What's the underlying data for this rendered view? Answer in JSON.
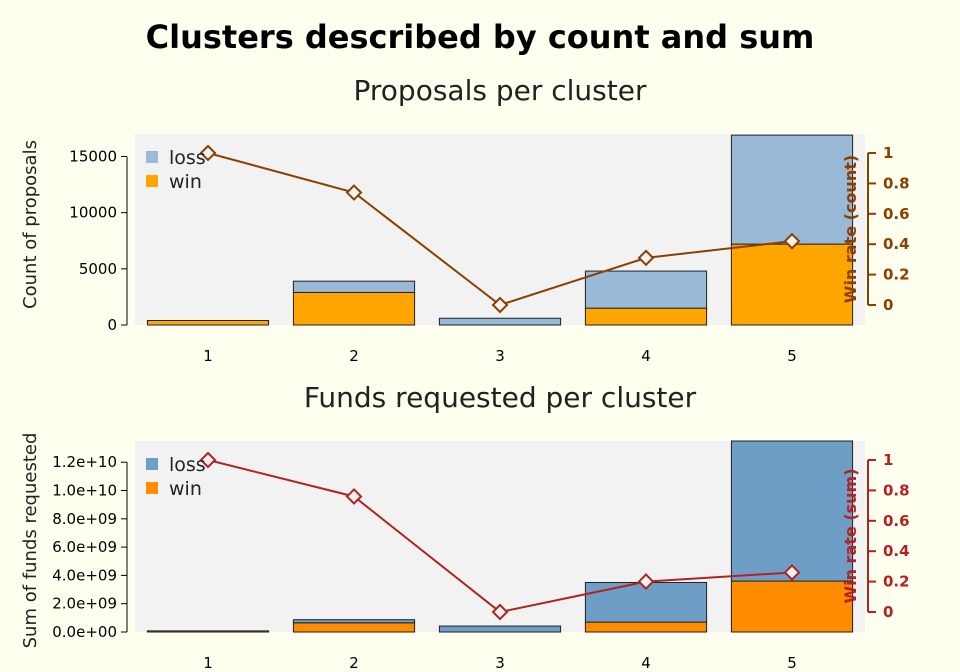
{
  "title": "Clusters described by count and sum",
  "chart_data": [
    {
      "type": "bar",
      "stacked": true,
      "title": "Proposals per cluster",
      "ylabel": "Count of proposals",
      "y2label": "Win rate (count)",
      "categories": [
        "1",
        "2",
        "3",
        "4",
        "5"
      ],
      "series": [
        {
          "name": "win",
          "values": [
            400,
            2900,
            0,
            1500,
            7200
          ],
          "color": "#ffa500"
        },
        {
          "name": "loss",
          "values": [
            0,
            1000,
            600,
            3300,
            9700
          ],
          "color": "#9ab9d6"
        }
      ],
      "win_rate": [
        1.0,
        0.74,
        0.0,
        0.31,
        0.42
      ],
      "ylim": [
        0,
        17000
      ],
      "yticks": [
        0,
        5000,
        10000,
        15000
      ],
      "y2lim": [
        0,
        1
      ],
      "y2ticks": [
        0,
        0.2,
        0.4,
        0.6,
        0.8,
        1
      ],
      "y2tick_labels": [
        "0",
        "0.2",
        "0.4",
        "0.6",
        "0.8",
        "1"
      ],
      "line_color": "#8b4000",
      "legend": [
        "loss",
        "win"
      ],
      "legend_position": "top-left",
      "grid": false
    },
    {
      "type": "bar",
      "stacked": true,
      "title": "Funds requested per cluster",
      "ylabel": "Sum of funds requested",
      "y2label": "Win rate (sum)",
      "categories": [
        "1",
        "2",
        "3",
        "4",
        "5"
      ],
      "series": [
        {
          "name": "win",
          "values": [
            80000000,
            650000000,
            0,
            700000000,
            3600000000
          ],
          "color": "#ff8c00"
        },
        {
          "name": "loss",
          "values": [
            0,
            220000000,
            420000000,
            2800000000,
            9900000000
          ],
          "color": "#6e9ec6"
        }
      ],
      "win_rate": [
        1.0,
        0.76,
        0.0,
        0.2,
        0.26
      ],
      "ylim": [
        0,
        13500000000
      ],
      "yticks": [
        0,
        2000000000,
        4000000000,
        6000000000,
        8000000000,
        10000000000,
        12000000000
      ],
      "ytick_labels": [
        "0.0e+00",
        "2.0e+09",
        "4.0e+09",
        "6.0e+09",
        "8.0e+09",
        "1.0e+10",
        "1.2e+10"
      ],
      "y2lim": [
        0,
        1
      ],
      "y2ticks": [
        0,
        0.2,
        0.4,
        0.6,
        0.8,
        1
      ],
      "y2tick_labels": [
        "0",
        "0.2",
        "0.4",
        "0.6",
        "0.8",
        "1"
      ],
      "line_color": "#b22222",
      "legend": [
        "loss",
        "win"
      ],
      "legend_position": "top-left",
      "grid": false
    }
  ]
}
